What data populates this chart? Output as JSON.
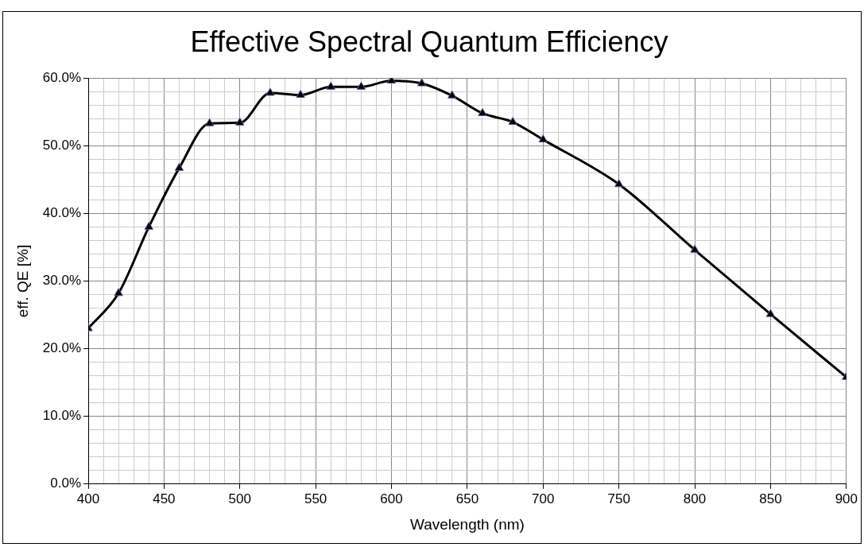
{
  "chart_data": {
    "type": "line",
    "title": "Effective Spectral Quantum Efficiency",
    "xlabel": "Wavelength (nm)",
    "ylabel": "eff. QE [%]",
    "x": [
      400,
      420,
      440,
      460,
      480,
      500,
      520,
      540,
      560,
      580,
      600,
      620,
      640,
      660,
      680,
      700,
      750,
      800,
      850,
      900
    ],
    "series": [
      {
        "color": "#000000",
        "values": [
          23.0,
          28.2,
          38.0,
          46.7,
          53.3,
          53.4,
          57.8,
          57.5,
          58.7,
          58.7,
          59.6,
          59.2,
          57.4,
          54.8,
          53.5,
          50.9,
          44.3,
          34.6,
          25.1,
          15.8
        ]
      }
    ],
    "xlim": [
      400,
      900
    ],
    "xticks": [
      400,
      {
        "value": 410,
        "label": null
      },
      {
        "value": 420,
        "label": null
      },
      {
        "value": 430,
        "label": null
      },
      {
        "value": 440,
        "label": null
      },
      450,
      {
        "value": 460,
        "label": null
      },
      {
        "value": 470,
        "label": null
      },
      {
        "value": 480,
        "label": null
      },
      {
        "value": 490,
        "label": null
      },
      500,
      {
        "value": 510,
        "label": null
      },
      {
        "value": 520,
        "label": null
      },
      {
        "value": 530,
        "label": null
      },
      {
        "value": 540,
        "label": null
      },
      550,
      {
        "value": 560,
        "label": null
      },
      {
        "value": 570,
        "label": null
      },
      {
        "value": 580,
        "label": null
      },
      {
        "value": 590,
        "label": null
      },
      600,
      {
        "value": 610,
        "label": null
      },
      {
        "value": 620,
        "label": null
      },
      {
        "value": 630,
        "label": null
      },
      {
        "value": 640,
        "label": null
      },
      650,
      {
        "value": 660,
        "label": null
      },
      {
        "value": 670,
        "label": null
      },
      {
        "value": 680,
        "label": null
      },
      {
        "value": 690,
        "label": null
      },
      700,
      {
        "value": 710,
        "label": null
      },
      {
        "value": 720,
        "label": null
      },
      {
        "value": 730,
        "label": null
      },
      {
        "value": 740,
        "label": null
      },
      750,
      {
        "value": 760,
        "label": null
      },
      {
        "value": 770,
        "label": null
      },
      {
        "value": 780,
        "label": null
      },
      {
        "value": 790,
        "label": null
      },
      800,
      {
        "value": 810,
        "label": null
      },
      {
        "value": 820,
        "label": null
      },
      {
        "value": 830,
        "label": null
      },
      {
        "value": 840,
        "label": null
      },
      850,
      {
        "value": 860,
        "label": null
      },
      {
        "value": 870,
        "label": null
      },
      {
        "value": 880,
        "label": null
      },
      {
        "value": 890,
        "label": null
      },
      900
    ],
    "ylim": [
      0,
      60
    ],
    "yticks": [
      {
        "value": 0,
        "label": "0.0%"
      },
      {
        "value": 2,
        "label": null
      },
      {
        "value": 4,
        "label": null
      },
      {
        "value": 6,
        "label": null
      },
      {
        "value": 8,
        "label": null
      },
      {
        "value": 10,
        "label": "10.0%"
      },
      {
        "value": 12,
        "label": null
      },
      {
        "value": 14,
        "label": null
      },
      {
        "value": 16,
        "label": null
      },
      {
        "value": 18,
        "label": null
      },
      {
        "value": 20,
        "label": "20.0%"
      },
      {
        "value": 22,
        "label": null
      },
      {
        "value": 24,
        "label": null
      },
      {
        "value": 26,
        "label": null
      },
      {
        "value": 28,
        "label": null
      },
      {
        "value": 30,
        "label": "30.0%"
      },
      {
        "value": 32,
        "label": null
      },
      {
        "value": 34,
        "label": null
      },
      {
        "value": 36,
        "label": null
      },
      {
        "value": 38,
        "label": null
      },
      {
        "value": 40,
        "label": "40.0%"
      },
      {
        "value": 42,
        "label": null
      },
      {
        "value": 44,
        "label": null
      },
      {
        "value": 46,
        "label": null
      },
      {
        "value": 48,
        "label": null
      },
      {
        "value": 50,
        "label": "50.0%"
      },
      {
        "value": 52,
        "label": null
      },
      {
        "value": 54,
        "label": null
      },
      {
        "value": 56,
        "label": null
      },
      {
        "value": 58,
        "label": null
      },
      {
        "value": 60,
        "label": "60.0%"
      }
    ],
    "grid": true,
    "legend": false,
    "marker": "triangle",
    "line_style": "solid"
  }
}
